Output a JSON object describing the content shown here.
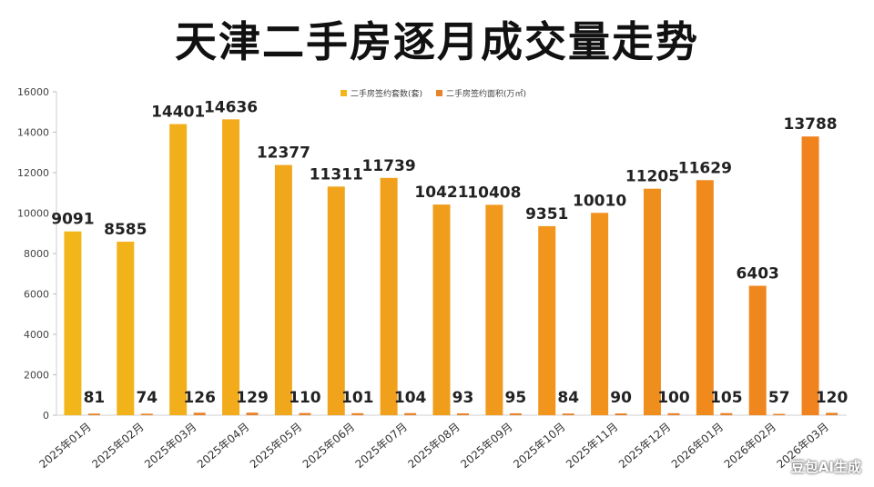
{
  "title": "天津二手房逐月成交量走势",
  "watermark": "豆包AI生成",
  "chart_data": {
    "type": "bar",
    "categories": [
      "2025年01月",
      "2025年02月",
      "2025年03月",
      "2025年04月",
      "2025年05月",
      "2025年06月",
      "2025年07月",
      "2025年08月",
      "2025年09月",
      "2025年10月",
      "2025年11月",
      "2025年12月",
      "2026年01月",
      "2026年02月",
      "2026年03月"
    ],
    "series": [
      {
        "name": "二手房签约套数(套)",
        "values": [
          9091,
          8585,
          14401,
          14636,
          12377,
          11311,
          11739,
          10421,
          10408,
          9351,
          10010,
          11205,
          11629,
          6403,
          13788
        ]
      },
      {
        "name": "二手房签约面积(万㎡)",
        "values": [
          81,
          74,
          126,
          129,
          110,
          101,
          104,
          93,
          95,
          84,
          90,
          100,
          105,
          57,
          120
        ]
      }
    ],
    "ylim": [
      0,
      16000
    ],
    "yticks": [
      0,
      2000,
      4000,
      6000,
      8000,
      10000,
      12000,
      14000,
      16000
    ],
    "legend_position": "top-center",
    "grid": false,
    "colors": {
      "yellow": "#f2b61a",
      "orange": "#f0831e",
      "small_bar": "#e8832a"
    }
  }
}
